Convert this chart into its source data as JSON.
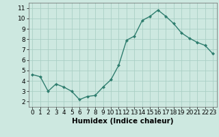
{
  "x": [
    0,
    1,
    2,
    3,
    4,
    5,
    6,
    7,
    8,
    9,
    10,
    11,
    12,
    13,
    14,
    15,
    16,
    17,
    18,
    19,
    20,
    21,
    22,
    23
  ],
  "y": [
    4.6,
    4.4,
    3.0,
    3.7,
    3.4,
    3.0,
    2.2,
    2.5,
    2.6,
    3.4,
    4.1,
    5.5,
    7.9,
    8.3,
    9.8,
    10.2,
    10.8,
    10.2,
    9.5,
    8.6,
    8.1,
    7.7,
    7.4,
    6.6
  ],
  "xlabel": "Humidex (Indice chaleur)",
  "xlim": [
    -0.5,
    23.5
  ],
  "ylim": [
    1.5,
    11.5
  ],
  "yticks": [
    2,
    3,
    4,
    5,
    6,
    7,
    8,
    9,
    10,
    11
  ],
  "xticks": [
    0,
    1,
    2,
    3,
    4,
    5,
    6,
    7,
    8,
    9,
    10,
    11,
    12,
    13,
    14,
    15,
    16,
    17,
    18,
    19,
    20,
    21,
    22,
    23
  ],
  "line_color": "#2e7d6e",
  "marker": "D",
  "marker_size": 2.0,
  "bg_color": "#cde8e0",
  "grid_color": "#aacfc5",
  "xlabel_fontsize": 7.5,
  "tick_fontsize": 6.5,
  "linewidth": 1.0
}
